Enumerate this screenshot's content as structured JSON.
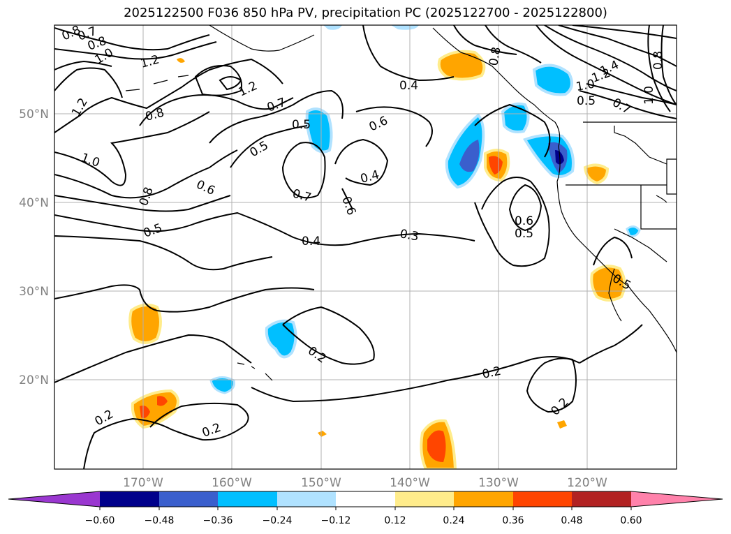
{
  "title": "2025122500 F036 850 hPa PV, precipitation PC (2025122700 - 2025122800)",
  "map": {
    "lat_ticks": [
      "50°N",
      "40°N",
      "30°N",
      "20°N"
    ],
    "lon_ticks": [
      "170°W",
      "160°W",
      "150°W",
      "140°W",
      "130°W",
      "120°W"
    ],
    "contour_labels": [
      "0.8",
      "0.7",
      "0.8",
      "1.0",
      "1.2",
      "1.2",
      "1.2",
      "0.8",
      "1.0",
      "0.7",
      "0.5",
      "0.5",
      "0.6",
      "0.4",
      "0.4",
      "0.7",
      "0.6",
      "0.6",
      "0.8",
      "0.5",
      "0.4",
      "0.3",
      "0.6",
      "0.5",
      "1.4",
      "1.2",
      "1.0",
      "0.8",
      "0.5",
      "0.7",
      "1.0",
      "0.8",
      "0.5",
      "0.2",
      "0.2",
      "0.2",
      "0.2",
      "0.2"
    ]
  },
  "colorbar": {
    "ticks": [
      "−0.60",
      "−0.48",
      "−0.36",
      "−0.24",
      "−0.12",
      "0.12",
      "0.24",
      "0.36",
      "0.48",
      "0.60"
    ],
    "colors": [
      "#9a37d0",
      "#00008b",
      "#3a5fcd",
      "#00bfff",
      "#b0e2ff",
      "#ffffff",
      "#ffec8b",
      "#ffa500",
      "#ff4500",
      "#b22222",
      "#ff82ab"
    ]
  }
}
